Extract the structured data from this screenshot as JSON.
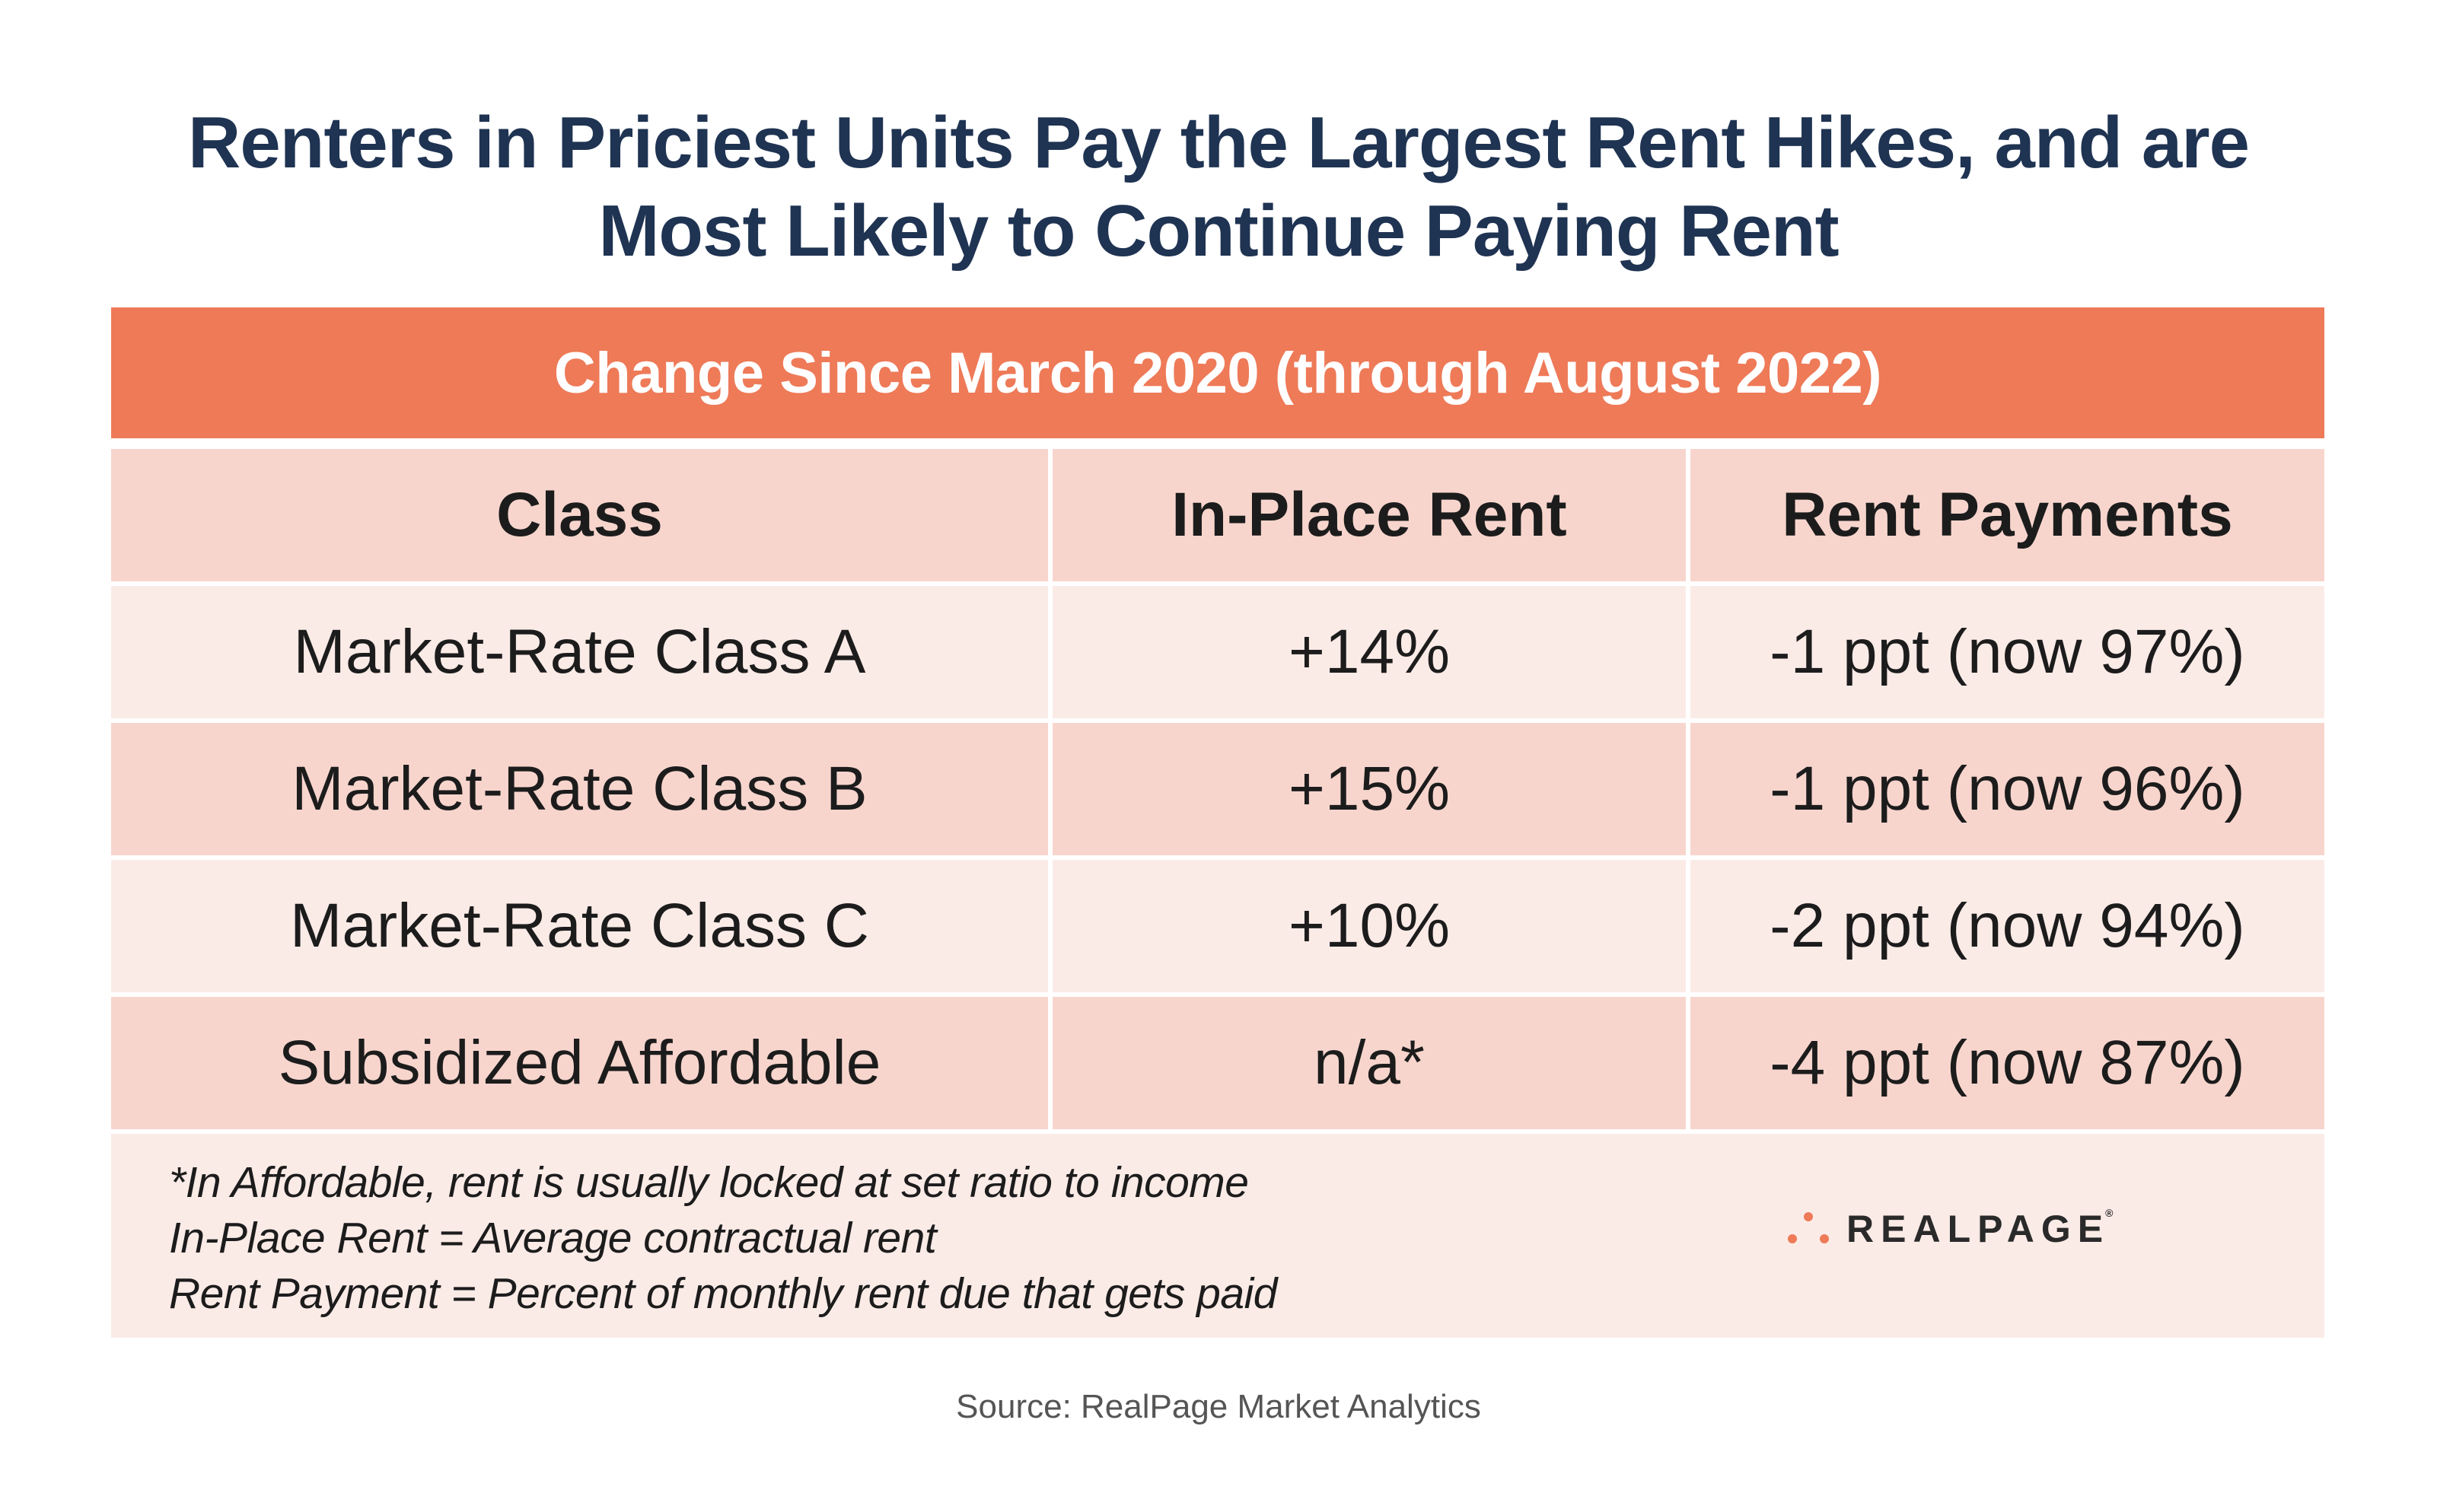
{
  "title": {
    "line1": "Renters in Priciest Units Pay the Largest Rent Hikes, and are",
    "line2": "Most Likely to Continue Paying Rent"
  },
  "band_label": "Change Since March 2020 (through August 2022)",
  "chart_data": {
    "type": "table",
    "title": "Renters in Priciest Units Pay the Largest Rent Hikes, and are Most Likely to Continue Paying Rent",
    "subtitle": "Change Since March 2020 (through August 2022)",
    "columns": [
      "Class",
      "In-Place Rent",
      "Rent Payments"
    ],
    "rows": [
      [
        "Market-Rate Class A",
        "+14%",
        "-1 ppt (now 97%)"
      ],
      [
        "Market-Rate Class B",
        "+15%",
        "-1 ppt (now 96%)"
      ],
      [
        "Market-Rate Class C",
        "+10%",
        "-2 ppt (now 94%)"
      ],
      [
        "Subsidized Affordable",
        "n/a*",
        "-4 ppt (now 87%)"
      ]
    ]
  },
  "notes": [
    "*In Affordable, rent is usually locked at set ratio to income",
    "In-Place Rent = Average contractual rent",
    "Rent Payment = Percent of monthly rent due that gets paid"
  ],
  "logo": {
    "text": "REALPAGE",
    "reg": "®",
    "color": "#ee7a58"
  },
  "source": "Source: RealPage Market Analytics",
  "colors": {
    "title": "#1f3352",
    "band": "#ee7a58",
    "header_row": "#f7d5cd",
    "row_light": "#fbebe7",
    "row_dark": "#f7d5cd"
  }
}
